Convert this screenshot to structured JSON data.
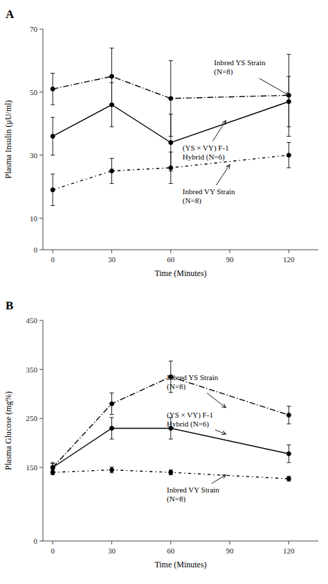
{
  "chart_data": [
    {
      "type": "line",
      "title": "A",
      "xlabel": "Time (Minutes)",
      "ylabel": "Plasma Insulin (μU/ml)",
      "color": "black",
      "marker": "circle",
      "x": [
        0,
        30,
        60,
        120
      ],
      "xlim": [
        -5,
        135
      ],
      "xticks": [
        0,
        30,
        60,
        90,
        120
      ],
      "ylim": [
        0,
        70
      ],
      "yticks": [
        0,
        10,
        30,
        50,
        70
      ],
      "series": [
        {
          "values": [
            51,
            55,
            48,
            49
          ],
          "yerr": [
            5,
            9,
            12,
            13
          ],
          "line_style": "dashdot"
        },
        {
          "values": [
            36,
            46,
            34,
            47
          ],
          "yerr": [
            6,
            7,
            9,
            8
          ],
          "line_style": "solid"
        },
        {
          "values": [
            19,
            25,
            26,
            30
          ],
          "yerr": [
            5,
            4,
            5,
            4
          ],
          "line_style": "loosely-dashdot"
        }
      ],
      "annotations": [
        {
          "text": "Inbred YS Strain\n(N=8)",
          "xy": [
            120,
            49
          ],
          "xytext": [
            82,
            58
          ]
        },
        {
          "text": "(YS × VY) F-1\nHybrid (N=6)",
          "xy": [
            88,
            41
          ],
          "xytext": [
            66,
            31
          ]
        },
        {
          "text": "Inbred VY Strain\n(N=8)",
          "xy": [
            90,
            27
          ],
          "xytext": [
            66,
            17
          ]
        }
      ]
    },
    {
      "type": "line",
      "title": "B",
      "xlabel": "Time (Minutes)",
      "ylabel": "Plasma Glucose (mg%)",
      "color": "black",
      "marker": "circle",
      "x": [
        0,
        30,
        60,
        120
      ],
      "xlim": [
        -5,
        135
      ],
      "xticks": [
        0,
        30,
        60,
        90,
        120
      ],
      "ylim": [
        0,
        450
      ],
      "yticks": [
        0,
        150,
        250,
        350,
        450
      ],
      "series": [
        {
          "values": [
            150,
            280,
            335,
            257
          ],
          "yerr": [
            10,
            22,
            32,
            18
          ],
          "line_style": "dashdot"
        },
        {
          "values": [
            150,
            230,
            230,
            178
          ],
          "yerr": [
            8,
            22,
            22,
            18
          ],
          "line_style": "solid"
        },
        {
          "values": [
            140,
            145,
            140,
            127
          ],
          "yerr": [
            5,
            6,
            5,
            5
          ],
          "line_style": "loosely-dashdot"
        }
      ],
      "annotations": [
        {
          "text": "Inbred YS Strain\n(N=8)",
          "xy": [
            88,
            272
          ],
          "xytext": [
            58,
            325
          ]
        },
        {
          "text": "(YS × VY) F-1\nHybrid (N=6)",
          "xy": [
            88,
            218
          ],
          "xytext": [
            58,
            248
          ]
        },
        {
          "text": "Inbred VY Strain\n(N=8)",
          "xy": [
            88,
            135
          ],
          "xytext": [
            58,
            95
          ]
        }
      ]
    }
  ]
}
